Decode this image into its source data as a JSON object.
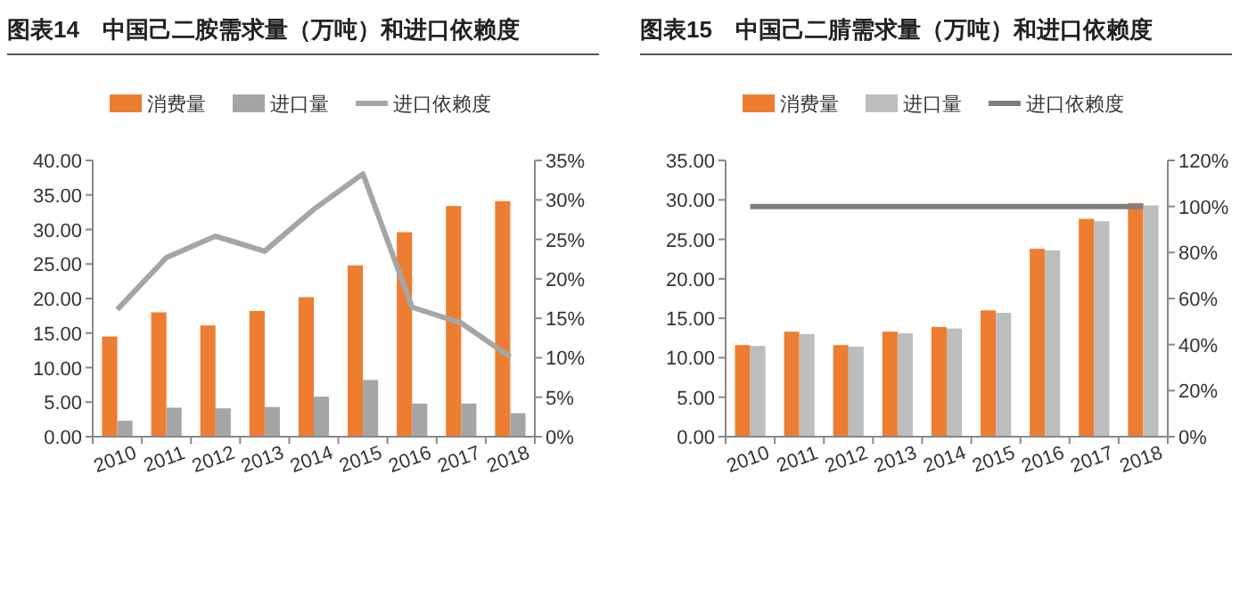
{
  "chart_data": [
    {
      "type": "bar",
      "title": "图表14　中国己二胺需求量（万吨）和进口依赖度",
      "categories": [
        "2010",
        "2011",
        "2012",
        "2013",
        "2014",
        "2015",
        "2016",
        "2017",
        "2018"
      ],
      "series": [
        {
          "name": "消费量",
          "color": "#ed7d31",
          "values": [
            14.5,
            18.0,
            16.1,
            18.2,
            20.2,
            24.8,
            29.6,
            33.4,
            34.1
          ]
        },
        {
          "name": "进口量",
          "color": "#a5a5a5",
          "values": [
            2.3,
            4.2,
            4.1,
            4.3,
            5.8,
            8.2,
            4.8,
            4.8,
            3.4
          ]
        },
        {
          "name": "进口依赖度",
          "type": "line",
          "axis": "y2",
          "color": "#a5a5a5",
          "values": [
            16.1,
            22.7,
            25.4,
            23.5,
            28.8,
            33.3,
            16.4,
            14.4,
            10.1
          ]
        }
      ],
      "ylim": [
        0,
        40
      ],
      "yticks": [
        {
          "value": 0,
          "label": "0.00"
        },
        {
          "value": 5,
          "label": "5.00"
        },
        {
          "value": 10,
          "label": "10.00"
        },
        {
          "value": 15,
          "label": "15.00"
        },
        {
          "value": 20,
          "label": "20.00"
        },
        {
          "value": 25,
          "label": "25.00"
        },
        {
          "value": 30,
          "label": "30.00"
        },
        {
          "value": 35,
          "label": "35.00"
        },
        {
          "value": 40,
          "label": "40.00"
        }
      ],
      "y2lim": [
        0,
        35
      ],
      "y2ticks": [
        {
          "value": 0,
          "label": "0%"
        },
        {
          "value": 5,
          "label": "5%"
        },
        {
          "value": 10,
          "label": "10%"
        },
        {
          "value": 15,
          "label": "15%"
        },
        {
          "value": 20,
          "label": "20%"
        },
        {
          "value": 25,
          "label": "25%"
        },
        {
          "value": 30,
          "label": "30%"
        },
        {
          "value": 35,
          "label": "35%"
        }
      ],
      "legend": "top"
    },
    {
      "type": "bar",
      "title": "图表15　中国己二腈需求量（万吨）和进口依赖度",
      "categories": [
        "2010",
        "2011",
        "2012",
        "2013",
        "2014",
        "2015",
        "2016",
        "2017",
        "2018"
      ],
      "series": [
        {
          "name": "消费量",
          "color": "#ed7d31",
          "values": [
            11.6,
            13.3,
            11.6,
            13.3,
            13.9,
            16.0,
            23.8,
            27.6,
            29.6
          ]
        },
        {
          "name": "进口量",
          "color": "#bdbdbd",
          "values": [
            11.5,
            13.0,
            11.4,
            13.1,
            13.7,
            15.7,
            23.6,
            27.3,
            29.3
          ]
        },
        {
          "name": "进口依赖度",
          "type": "line",
          "axis": "y2",
          "color": "#7f7f7f",
          "values": [
            100,
            100,
            100,
            100,
            100,
            100,
            100,
            100,
            100
          ]
        }
      ],
      "ylim": [
        0,
        35
      ],
      "yticks": [
        {
          "value": 0,
          "label": "0.00"
        },
        {
          "value": 5,
          "label": "5.00"
        },
        {
          "value": 10,
          "label": "10.00"
        },
        {
          "value": 15,
          "label": "15.00"
        },
        {
          "value": 20,
          "label": "20.00"
        },
        {
          "value": 25,
          "label": "25.00"
        },
        {
          "value": 30,
          "label": "30.00"
        },
        {
          "value": 35,
          "label": "35.00"
        }
      ],
      "y2lim": [
        0,
        120
      ],
      "y2ticks": [
        {
          "value": 0,
          "label": "0%"
        },
        {
          "value": 20,
          "label": "20%"
        },
        {
          "value": 40,
          "label": "40%"
        },
        {
          "value": 60,
          "label": "60%"
        },
        {
          "value": 80,
          "label": "80%"
        },
        {
          "value": 100,
          "label": "100%"
        },
        {
          "value": 120,
          "label": "120%"
        }
      ],
      "legend": "top"
    }
  ]
}
